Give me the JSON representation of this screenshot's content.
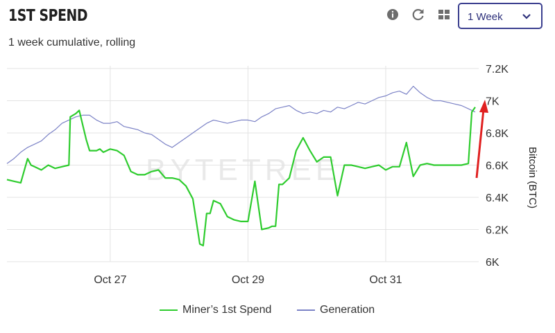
{
  "header": {
    "title": "1ST SPEND",
    "subtitle": "1 week cumulative, rolling"
  },
  "toolbar": {
    "icons": [
      "info-icon",
      "refresh-icon",
      "grid-icon"
    ],
    "range_select": {
      "value": "1 Week"
    }
  },
  "watermark": "BYTETREE",
  "colors": {
    "miner_spend": "#2ecc2e",
    "generation": "#7b82c6",
    "annotation_arrow": "#e02020",
    "select_border": "#3b3f8f"
  },
  "chart_data": {
    "type": "line",
    "title": "",
    "ylabel": "Bitcoin (BTC)",
    "ylim": [
      6000,
      7200
    ],
    "y_ticks": [
      "6K",
      "6.2K",
      "6.4K",
      "6.6K",
      "6.8K",
      "7K",
      "7.2K"
    ],
    "y_tick_values": [
      6000,
      6200,
      6400,
      6600,
      6800,
      7000,
      7200
    ],
    "x_ticks": [
      "Oct 27",
      "Oct 29",
      "Oct 31"
    ],
    "x_tick_values": [
      1.5,
      3.5,
      5.5
    ],
    "xlim": [
      0,
      6.85
    ],
    "legend_position": "bottom",
    "grid": true,
    "annotation": "red arrow pointing up at latest values",
    "series": [
      {
        "name": "Miner’s 1st Spend",
        "x": [
          0,
          0.1,
          0.2,
          0.3,
          0.35,
          0.4,
          0.5,
          0.6,
          0.7,
          0.8,
          0.9,
          0.92,
          1.0,
          1.05,
          1.1,
          1.15,
          1.2,
          1.3,
          1.35,
          1.4,
          1.5,
          1.6,
          1.7,
          1.8,
          1.9,
          2.0,
          2.1,
          2.2,
          2.3,
          2.4,
          2.5,
          2.6,
          2.7,
          2.8,
          2.85,
          2.9,
          2.95,
          3.0,
          3.1,
          3.2,
          3.3,
          3.4,
          3.5,
          3.6,
          3.7,
          3.8,
          3.85,
          3.9,
          3.95,
          4.0,
          4.1,
          4.2,
          4.3,
          4.4,
          4.5,
          4.6,
          4.7,
          4.8,
          4.9,
          5.0,
          5.1,
          5.2,
          5.3,
          5.4,
          5.5,
          5.6,
          5.7,
          5.8,
          5.9,
          6.0,
          6.1,
          6.2,
          6.3,
          6.4,
          6.5,
          6.6,
          6.7,
          6.75,
          6.8
        ],
        "y": [
          6510,
          6500,
          6490,
          6640,
          6600,
          6590,
          6570,
          6600,
          6580,
          6590,
          6600,
          6900,
          6920,
          6940,
          6850,
          6760,
          6690,
          6690,
          6700,
          6680,
          6700,
          6690,
          6660,
          6560,
          6540,
          6540,
          6560,
          6570,
          6520,
          6520,
          6510,
          6470,
          6390,
          6110,
          6100,
          6300,
          6300,
          6380,
          6360,
          6280,
          6260,
          6250,
          6250,
          6500,
          6200,
          6210,
          6220,
          6220,
          6480,
          6480,
          6520,
          6690,
          6770,
          6690,
          6620,
          6650,
          6650,
          6410,
          6600,
          6600,
          6590,
          6580,
          6590,
          6600,
          6570,
          6590,
          6590,
          6740,
          6530,
          6600,
          6610,
          6600,
          6600,
          6600,
          6600,
          6600,
          6610,
          6930,
          6960
        ]
      },
      {
        "name": "Generation",
        "x": [
          0,
          0.1,
          0.2,
          0.3,
          0.4,
          0.5,
          0.6,
          0.7,
          0.8,
          0.9,
          1.0,
          1.1,
          1.2,
          1.3,
          1.4,
          1.5,
          1.6,
          1.7,
          1.8,
          1.9,
          2.0,
          2.1,
          2.2,
          2.3,
          2.4,
          2.5,
          2.6,
          2.7,
          2.8,
          2.9,
          3.0,
          3.1,
          3.2,
          3.3,
          3.4,
          3.5,
          3.6,
          3.7,
          3.8,
          3.9,
          4.0,
          4.1,
          4.2,
          4.3,
          4.4,
          4.5,
          4.6,
          4.7,
          4.8,
          4.9,
          5.0,
          5.1,
          5.2,
          5.3,
          5.4,
          5.5,
          5.6,
          5.7,
          5.8,
          5.9,
          6.0,
          6.1,
          6.2,
          6.3,
          6.4,
          6.5,
          6.6,
          6.7,
          6.8
        ],
        "y": [
          6610,
          6640,
          6680,
          6710,
          6730,
          6750,
          6790,
          6820,
          6860,
          6880,
          6900,
          6910,
          6910,
          6880,
          6860,
          6860,
          6870,
          6840,
          6830,
          6820,
          6800,
          6790,
          6760,
          6730,
          6710,
          6740,
          6770,
          6800,
          6830,
          6860,
          6880,
          6870,
          6860,
          6870,
          6880,
          6880,
          6870,
          6900,
          6920,
          6950,
          6960,
          6970,
          6940,
          6920,
          6930,
          6920,
          6940,
          6930,
          6960,
          6950,
          6970,
          6990,
          6980,
          7000,
          7020,
          7030,
          7050,
          7060,
          7040,
          7090,
          7050,
          7020,
          7000,
          7000,
          6990,
          6980,
          6970,
          6950,
          6930
        ]
      }
    ]
  }
}
